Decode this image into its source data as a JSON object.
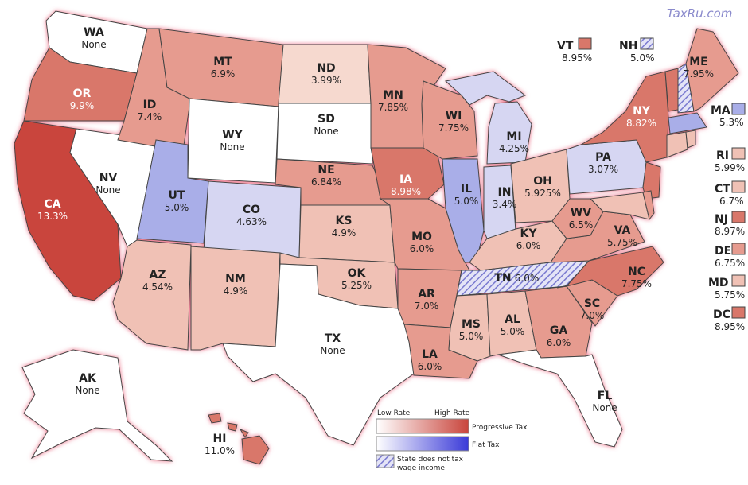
{
  "watermark": "TaxRu.com",
  "colors": {
    "high": "#c9453c",
    "mid_high": "#d9776a",
    "mid": "#e69b8f",
    "low": "#f0c1b5",
    "lowest": "#f6d9cf",
    "flat_mid": "#a9aee8",
    "flat_light": "#d6d6f2",
    "none": "#ffffff",
    "border_glow": "#e8607a",
    "stroke": "#444444"
  },
  "states": {
    "WA": {
      "code": "WA",
      "rate": "None"
    },
    "OR": {
      "code": "OR",
      "rate": "9.9%"
    },
    "CA": {
      "code": "CA",
      "rate": "13.3%"
    },
    "NV": {
      "code": "NV",
      "rate": "None"
    },
    "ID": {
      "code": "ID",
      "rate": "7.4%"
    },
    "MT": {
      "code": "MT",
      "rate": "6.9%"
    },
    "WY": {
      "code": "WY",
      "rate": "None"
    },
    "UT": {
      "code": "UT",
      "rate": "5.0%"
    },
    "CO": {
      "code": "CO",
      "rate": "4.63%"
    },
    "AZ": {
      "code": "AZ",
      "rate": "4.54%"
    },
    "NM": {
      "code": "NM",
      "rate": "4.9%"
    },
    "ND": {
      "code": "ND",
      "rate": "3.99%"
    },
    "SD": {
      "code": "SD",
      "rate": "None"
    },
    "NE": {
      "code": "NE",
      "rate": "6.84%"
    },
    "KS": {
      "code": "KS",
      "rate": "4.9%"
    },
    "OK": {
      "code": "OK",
      "rate": "5.25%"
    },
    "TX": {
      "code": "TX",
      "rate": "None"
    },
    "MN": {
      "code": "MN",
      "rate": "7.85%"
    },
    "IA": {
      "code": "IA",
      "rate": "8.98%"
    },
    "MO": {
      "code": "MO",
      "rate": "6.0%"
    },
    "AR": {
      "code": "AR",
      "rate": "7.0%"
    },
    "LA": {
      "code": "LA",
      "rate": "6.0%"
    },
    "WI": {
      "code": "WI",
      "rate": "7.75%"
    },
    "IL": {
      "code": "IL",
      "rate": "5.0%"
    },
    "MI": {
      "code": "MI",
      "rate": "4.25%"
    },
    "IN": {
      "code": "IN",
      "rate": "3.4%"
    },
    "OH": {
      "code": "OH",
      "rate": "5.925%"
    },
    "KY": {
      "code": "KY",
      "rate": "6.0%"
    },
    "TN": {
      "code": "TN",
      "rate": "6.0%"
    },
    "MS": {
      "code": "MS",
      "rate": "5.0%"
    },
    "AL": {
      "code": "AL",
      "rate": "5.0%"
    },
    "GA": {
      "code": "GA",
      "rate": "6.0%"
    },
    "FL": {
      "code": "FL",
      "rate": "None"
    },
    "SC": {
      "code": "SC",
      "rate": "7.0%"
    },
    "NC": {
      "code": "NC",
      "rate": "7.75%"
    },
    "VA": {
      "code": "VA",
      "rate": "5.75%"
    },
    "WV": {
      "code": "WV",
      "rate": "6.5%"
    },
    "PA": {
      "code": "PA",
      "rate": "3.07%"
    },
    "NY": {
      "code": "NY",
      "rate": "8.82%"
    },
    "ME": {
      "code": "ME",
      "rate": "7.95%"
    },
    "AK": {
      "code": "AK",
      "rate": "None"
    },
    "HI": {
      "code": "HI",
      "rate": "11.0%"
    }
  },
  "side_states": {
    "VT": {
      "code": "VT",
      "rate": "8.95%"
    },
    "NH": {
      "code": "NH",
      "rate": "5.0%"
    },
    "MA": {
      "code": "MA",
      "rate": "5.3%"
    },
    "RI": {
      "code": "RI",
      "rate": "5.99%"
    },
    "CT": {
      "code": "CT",
      "rate": "6.7%"
    },
    "NJ": {
      "code": "NJ",
      "rate": "8.97%"
    },
    "DE": {
      "code": "DE",
      "rate": "6.75%"
    },
    "MD": {
      "code": "MD",
      "rate": "5.75%"
    },
    "DC": {
      "code": "DC",
      "rate": "8.95%"
    }
  },
  "legend": {
    "low_label": "Low Rate",
    "high_label": "High Rate",
    "progressive_label": "Progressive Tax",
    "flat_label": "Flat Tax",
    "none_label_line1": "State does not tax",
    "none_label_line2": "wage income"
  }
}
